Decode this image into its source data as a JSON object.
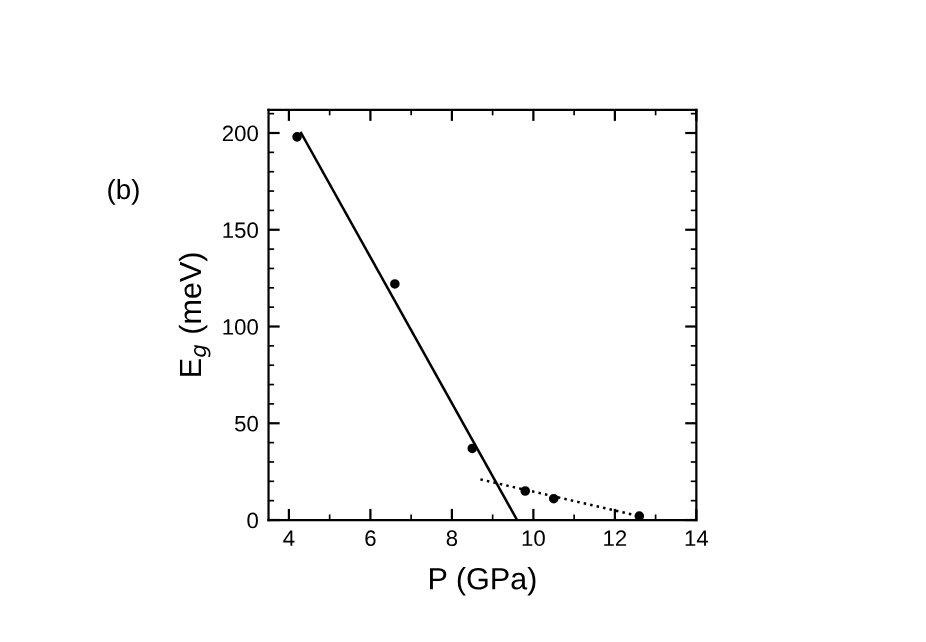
{
  "chart_data": {
    "type": "scatter",
    "xlabel": "P (GPa)",
    "ylabel": "E$_{g}$ (meV)",
    "annotations": [
      "(b)"
    ],
    "series": [
      {
        "color": "#000000",
        "marker": "circle",
        "x": [
          4.2,
          6.6,
          8.5,
          9.8,
          10.5,
          12.6
        ],
        "values": [
          198,
          122,
          37,
          15,
          11,
          2
        ]
      },
      {
        "type": "line",
        "color": "#000000",
        "line_style": "solid",
        "x": [
          4.3,
          9.6
        ],
        "values": [
          200,
          0
        ]
      },
      {
        "type": "line",
        "color": "#000000",
        "line_style": "dotted",
        "x": [
          8.7,
          12.6
        ],
        "values": [
          21,
          2
        ]
      }
    ],
    "xlim": [
      3.5,
      14
    ],
    "xticks": [
      4,
      6,
      8,
      10,
      12,
      14
    ],
    "ylim": [
      0,
      212
    ],
    "yticks": [
      0,
      50,
      100,
      150,
      200
    ],
    "grid": false
  }
}
